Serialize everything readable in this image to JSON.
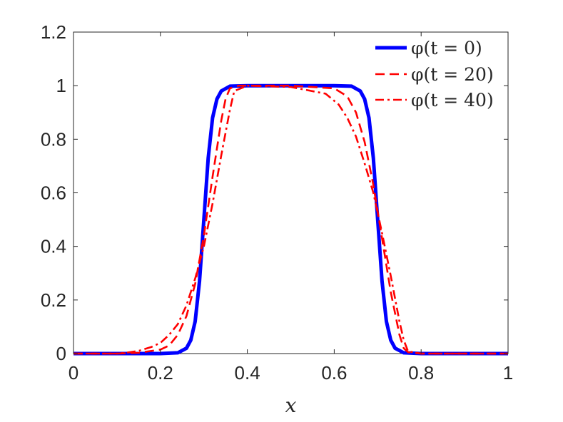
{
  "chart_data": {
    "type": "line",
    "xlabel": "x",
    "ylabel": "",
    "xlim": [
      0,
      1
    ],
    "ylim": [
      0,
      1.2
    ],
    "xticks": [
      "0",
      "0.2",
      "0.4",
      "0.6",
      "0.8",
      "1"
    ],
    "yticks": [
      "0",
      "0.2",
      "0.4",
      "0.6",
      "0.8",
      "1",
      "1.2"
    ],
    "grid": false,
    "legend_position": "top-right",
    "series": [
      {
        "name": "φ(t = 0)",
        "color": "#0000ff",
        "style": "solid",
        "x": [
          0,
          0.2,
          0.24,
          0.26,
          0.27,
          0.28,
          0.29,
          0.3,
          0.31,
          0.32,
          0.33,
          0.34,
          0.36,
          0.4,
          0.5,
          0.6,
          0.64,
          0.66,
          0.67,
          0.68,
          0.69,
          0.7,
          0.71,
          0.72,
          0.73,
          0.74,
          0.76,
          0.8,
          1
        ],
        "y": [
          0,
          0,
          0.003,
          0.02,
          0.05,
          0.12,
          0.27,
          0.5,
          0.73,
          0.88,
          0.95,
          0.98,
          0.998,
          1,
          1,
          1,
          0.998,
          0.98,
          0.95,
          0.88,
          0.73,
          0.5,
          0.27,
          0.12,
          0.05,
          0.02,
          0.003,
          0,
          0
        ]
      },
      {
        "name": "φ(t = 20)",
        "color": "#ff0000",
        "style": "dashed",
        "x": [
          0,
          0.1,
          0.15,
          0.2,
          0.22,
          0.24,
          0.26,
          0.28,
          0.3,
          0.32,
          0.34,
          0.35,
          0.36,
          0.38,
          0.5,
          0.6,
          0.63,
          0.65,
          0.67,
          0.69,
          0.71,
          0.73,
          0.75,
          0.76,
          0.77,
          0.8,
          1
        ],
        "y": [
          0,
          0,
          0.003,
          0.015,
          0.03,
          0.07,
          0.14,
          0.26,
          0.44,
          0.66,
          0.87,
          0.95,
          0.99,
          1,
          1,
          0.99,
          0.96,
          0.9,
          0.79,
          0.63,
          0.43,
          0.23,
          0.07,
          0.02,
          0.005,
          0,
          0
        ]
      },
      {
        "name": "φ(t = 40)",
        "color": "#ff0000",
        "style": "dashdot",
        "x": [
          0,
          0.1,
          0.12,
          0.15,
          0.18,
          0.2,
          0.22,
          0.24,
          0.26,
          0.28,
          0.3,
          0.32,
          0.34,
          0.36,
          0.37,
          0.4,
          0.5,
          0.58,
          0.61,
          0.63,
          0.65,
          0.67,
          0.69,
          0.71,
          0.73,
          0.75,
          0.76,
          0.77,
          0.8,
          1
        ],
        "y": [
          0,
          0,
          0.003,
          0.01,
          0.025,
          0.04,
          0.07,
          0.11,
          0.18,
          0.28,
          0.4,
          0.56,
          0.74,
          0.91,
          0.98,
          1,
          0.995,
          0.97,
          0.93,
          0.88,
          0.81,
          0.71,
          0.6,
          0.45,
          0.29,
          0.12,
          0.05,
          0.008,
          0,
          0
        ]
      }
    ]
  }
}
